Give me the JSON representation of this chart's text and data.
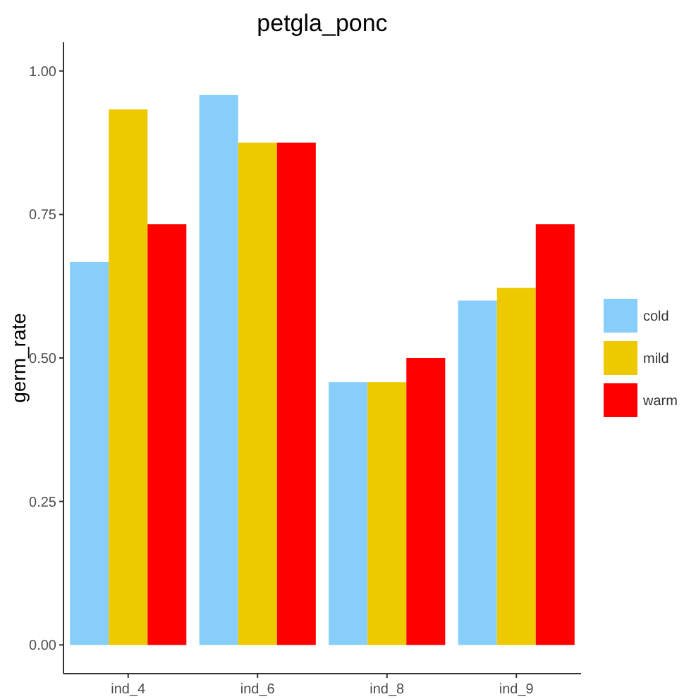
{
  "chart_data": {
    "type": "bar",
    "title": "petgla_ponc",
    "ylabel": "germ_rate",
    "categories": [
      "ind_4",
      "ind_6",
      "ind_8",
      "ind_9"
    ],
    "series": [
      {
        "name": "cold",
        "color": "#87cefa",
        "values": [
          0.667,
          0.958,
          0.458,
          0.6
        ]
      },
      {
        "name": "mild",
        "color": "#eec900",
        "values": [
          0.933,
          0.875,
          0.458,
          0.622
        ]
      },
      {
        "name": "warm",
        "color": "#ff0000",
        "values": [
          0.733,
          0.875,
          0.5,
          0.733
        ]
      }
    ],
    "ylim": [
      -0.05,
      1.05
    ],
    "yticks": [
      {
        "value": 0,
        "label": "0.00"
      },
      {
        "value": 0.25,
        "label": "0.25"
      },
      {
        "value": 0.5,
        "label": "0.50"
      },
      {
        "value": 0.75,
        "label": "0.75"
      },
      {
        "value": 1,
        "label": "1.00"
      }
    ],
    "grid": false,
    "legend": "right"
  }
}
